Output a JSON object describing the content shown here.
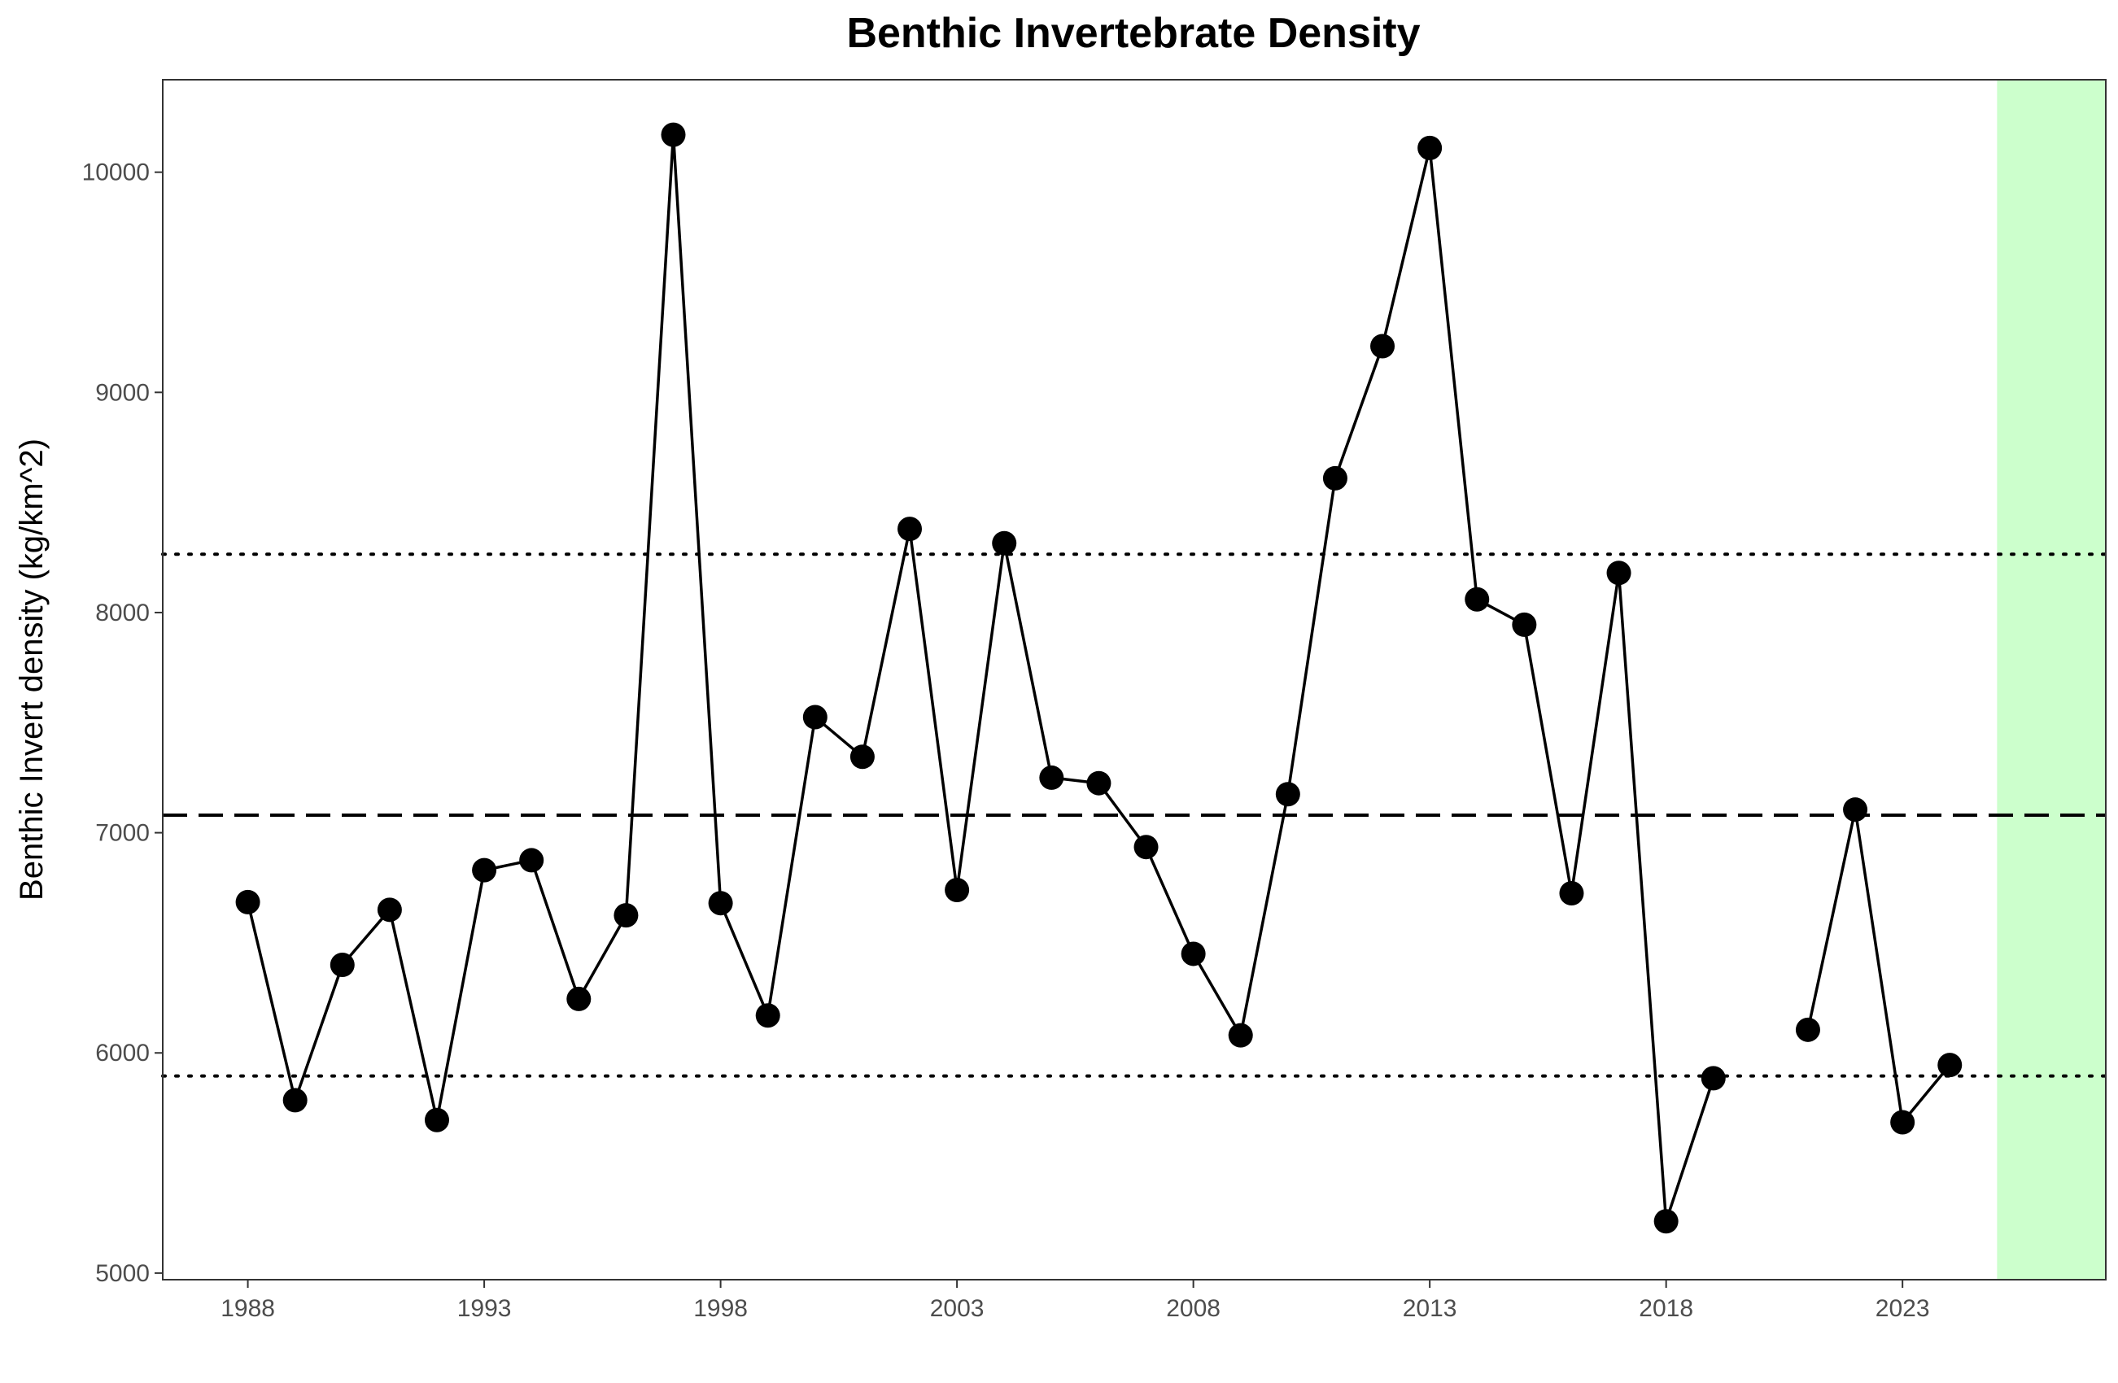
{
  "chart_data": {
    "type": "line",
    "title": "Benthic Invertebrate Density",
    "xlabel": "",
    "ylabel": "Benthic Invert density (kg/km^2)",
    "xlim": [
      1986.2,
      2027.3
    ],
    "ylim": [
      4970,
      10420
    ],
    "x_ticks": [
      1988,
      1993,
      1998,
      2003,
      2008,
      2013,
      2018,
      2023
    ],
    "y_ticks": [
      5000,
      6000,
      7000,
      8000,
      9000,
      10000
    ],
    "grid": false,
    "series": [
      {
        "x": [
          1988,
          1989,
          1990,
          1991,
          1992,
          1993,
          1994,
          1995,
          1996,
          1997,
          1998,
          1999,
          2000,
          2001,
          2002,
          2003,
          2004,
          2005,
          2006,
          2007,
          2008,
          2009,
          2010,
          2011,
          2012,
          2013,
          2014,
          2015,
          2016,
          2017,
          2018,
          2019,
          2020,
          2021,
          2022,
          2023,
          2024
        ],
        "values": [
          6685,
          5785,
          6400,
          6650,
          5695,
          6830,
          6875,
          6245,
          6625,
          10170,
          6680,
          6170,
          7525,
          7345,
          8380,
          6740,
          8315,
          7250,
          7225,
          6935,
          6450,
          6080,
          7175,
          8610,
          9210,
          10110,
          8060,
          7945,
          6725,
          8180,
          5235,
          5885,
          null,
          6105,
          7105,
          5685,
          5945
        ]
      }
    ],
    "reference_lines": {
      "mean": 7080,
      "upper_sd": 8265,
      "lower_sd": 5895
    },
    "highlight_region": {
      "x_start": 2025.0,
      "x_end": 2027.3,
      "color": "#ccffcc"
    },
    "colors": {
      "line": "#000000",
      "points": "#000000"
    }
  }
}
